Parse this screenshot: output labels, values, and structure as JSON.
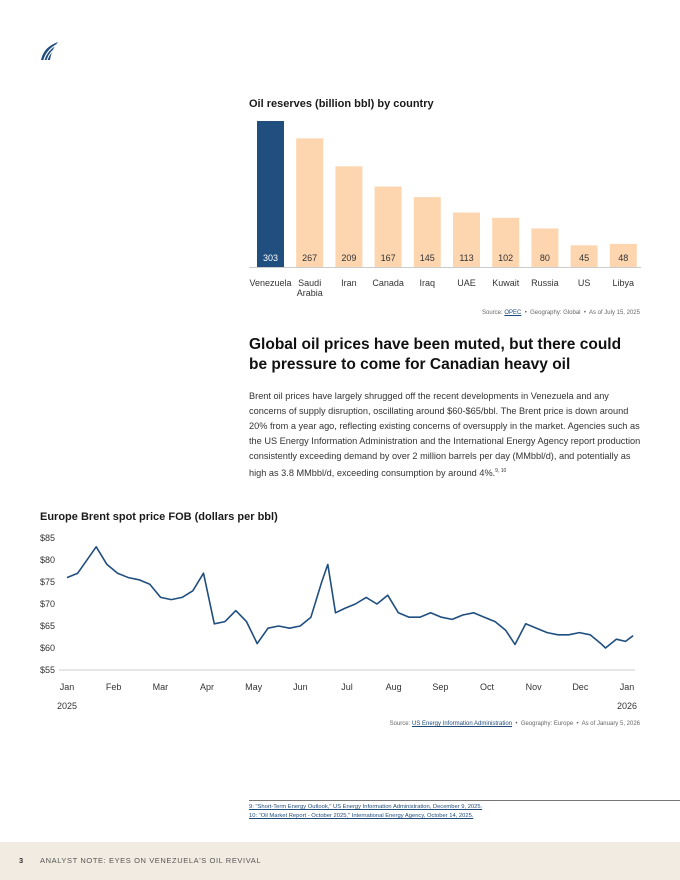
{
  "logo": {
    "name": "sail-logo-icon"
  },
  "bar_chart_title": "Oil reserves (billion bbl) by country",
  "bar_source": {
    "prefix": "Source:",
    "link": "OPEC",
    "geo": "Geography: Global",
    "date": "As of July 15, 2025"
  },
  "heading": "Global oil prices have been muted, but there could be pressure to come for Canadian heavy oil",
  "paragraph": "Brent oil prices have largely shrugged off the recent developments in Venezuela and any concerns of supply disruption, oscillating around $60-$65/bbl. The Brent price is down around 20% from a year ago, reflecting existing concerns of oversupply in the market. Agencies such as the US Energy Information Administration and the International Energy Agency report production consistently exceeding demand by over 2 million barrels per day (MMbbl/d), and potentially as high as 3.8 MMbbl/d, exceeding consumption by around 4%.",
  "paragraph_refs": "9, 10",
  "line_chart_title": "Europe Brent spot price FOB (dollars per bbl)",
  "line_source": {
    "prefix": "Source:",
    "link": "US Energy Information Administration",
    "geo": "Geography: Europe",
    "date": "As of January 5, 2026"
  },
  "footnotes": [
    "9: \"Short-Term Energy Outlook,\" US Energy Information Administration, December 9, 2025.",
    "10: \"Oil Market Report - October 2025,\" International Energy Agency, October 14, 2025."
  ],
  "footer": {
    "page": "3",
    "title": "ANALYST NOTE: EYES ON VENEZUELA'S OIL REVIVAL"
  },
  "colors": {
    "highlight": "#1f4e7f",
    "bar": "#fdd5af",
    "line": "#1f4e7f",
    "footer_bg": "#f1ebe1"
  },
  "chart_data": [
    {
      "type": "bar",
      "title": "Oil reserves (billion bbl) by country",
      "categories": [
        "Venezuela",
        "Saudi Arabia",
        "Iran",
        "Canada",
        "Iraq",
        "UAE",
        "Kuwait",
        "Russia",
        "US",
        "Libya"
      ],
      "values": [
        303,
        267,
        209,
        167,
        145,
        113,
        102,
        80,
        45,
        48
      ],
      "highlight": "Venezuela"
    },
    {
      "type": "line",
      "title": "Europe Brent spot price FOB (dollars per bbl)",
      "ylim": [
        55,
        85
      ],
      "yticks": [
        "$85",
        "$80",
        "$75",
        "$70",
        "$65",
        "$60",
        "$55"
      ],
      "xticks": [
        "Jan",
        "Feb",
        "Mar",
        "Apr",
        "May",
        "Jun",
        "Jul",
        "Aug",
        "Sep",
        "Oct",
        "Nov",
        "Dec",
        "Jan"
      ],
      "xyears": [
        "2025",
        "2026"
      ],
      "x": [
        "2025-01-01",
        "2025-01-08",
        "2025-01-15",
        "2025-01-20",
        "2025-01-27",
        "2025-02-03",
        "2025-02-10",
        "2025-02-17",
        "2025-02-24",
        "2025-03-03",
        "2025-03-10",
        "2025-03-17",
        "2025-03-24",
        "2025-03-31",
        "2025-04-07",
        "2025-04-14",
        "2025-04-21",
        "2025-04-28",
        "2025-05-05",
        "2025-05-12",
        "2025-05-19",
        "2025-05-26",
        "2025-06-02",
        "2025-06-09",
        "2025-06-16",
        "2025-06-20",
        "2025-06-25",
        "2025-07-01",
        "2025-07-08",
        "2025-07-15",
        "2025-07-22",
        "2025-07-29",
        "2025-08-05",
        "2025-08-12",
        "2025-08-19",
        "2025-08-26",
        "2025-09-02",
        "2025-09-09",
        "2025-09-16",
        "2025-09-23",
        "2025-09-30",
        "2025-10-07",
        "2025-10-14",
        "2025-10-20",
        "2025-10-27",
        "2025-11-03",
        "2025-11-10",
        "2025-11-17",
        "2025-11-24",
        "2025-12-01",
        "2025-12-08",
        "2025-12-15",
        "2025-12-18",
        "2025-12-25",
        "2025-12-31",
        "2026-01-05"
      ],
      "y": [
        76,
        77,
        80.5,
        83,
        79,
        77,
        76,
        75.5,
        74.5,
        71.5,
        71,
        71.5,
        73,
        77,
        65.5,
        66,
        68.5,
        66,
        61,
        64.5,
        65,
        64.5,
        65,
        67,
        75,
        79,
        68,
        69,
        70,
        71.5,
        70,
        72,
        68,
        67,
        67,
        68,
        67,
        66.5,
        67.5,
        68,
        67,
        66,
        64,
        60.8,
        65.5,
        64.5,
        63.5,
        63,
        63,
        63.5,
        63,
        61,
        60,
        62,
        61.5,
        62.8
      ]
    }
  ]
}
